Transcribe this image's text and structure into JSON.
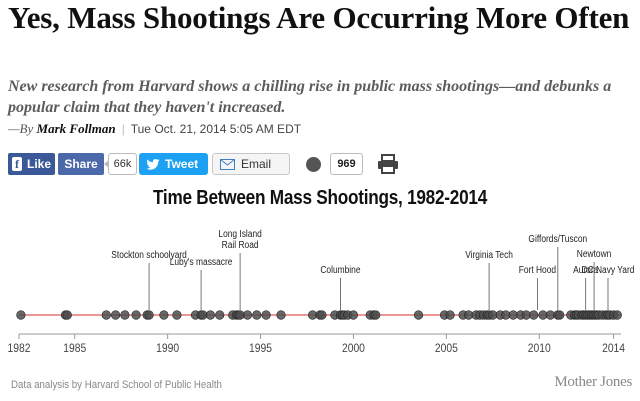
{
  "article": {
    "headline": "Yes, Mass Shootings Are Occurring More Often",
    "dek": "New research from Harvard shows a chilling rise in public mass shootings—and debunks a popular claim that they haven't increased.",
    "by_prefix": "—By",
    "author": "Mark Follman",
    "separator": "|",
    "date": "Tue Oct. 21, 2014 5:05 AM EDT"
  },
  "share_bar": {
    "facebook_like": "Like",
    "facebook_share": "Share",
    "share_count": "66k",
    "tweet": "Tweet",
    "email": "Email",
    "comment_count": "969",
    "icons": [
      "facebook-icon",
      "twitter-bird-icon",
      "envelope-icon",
      "comment-bubble-icon",
      "printer-icon"
    ],
    "colors": {
      "facebook": "#3b5998",
      "twitter": "#1da1f2"
    }
  },
  "chart_data": {
    "type": "scatter",
    "title": "Time Between Mass Shootings, 1982-2014",
    "xlabel": "",
    "ylabel": "",
    "xlim": [
      1982,
      2014.4
    ],
    "x_ticks": [
      "1982",
      "1985",
      "1990",
      "1995",
      "2000",
      "2005",
      "2010",
      "2014"
    ],
    "x": [
      1982.1,
      1984.5,
      1984.6,
      1986.7,
      1987.2,
      1987.7,
      1988.3,
      1988.9,
      1989.0,
      1989.8,
      1990.5,
      1991.5,
      1991.8,
      1991.9,
      1992.3,
      1992.8,
      1993.5,
      1993.7,
      1993.8,
      1993.9,
      1994.3,
      1994.8,
      1995.3,
      1996.1,
      1997.8,
      1998.2,
      1998.3,
      1999.0,
      1999.3,
      1999.4,
      1999.5,
      1999.7,
      2000.0,
      2000.9,
      2001.1,
      2001.2,
      2003.5,
      2004.9,
      2005.2,
      2005.9,
      2006.2,
      2006.6,
      2006.8,
      2007.0,
      2007.2,
      2007.3,
      2007.5,
      2007.9,
      2008.2,
      2008.6,
      2009.0,
      2009.3,
      2009.7,
      2010.2,
      2010.6,
      2011.0,
      2011.1,
      2011.7,
      2011.9,
      2012.0,
      2012.1,
      2012.3,
      2012.4,
      2012.5,
      2012.6,
      2012.7,
      2012.8,
      2012.9,
      2013.0,
      2013.1,
      2013.2,
      2013.4,
      2013.6,
      2013.7,
      2013.8,
      2014.0,
      2014.2
    ],
    "annotations": [
      {
        "label": "Stockton schoolyard",
        "x": 1989.0
      },
      {
        "label": "Luby's massacre",
        "x": 1991.8
      },
      {
        "label": "Long Island\nRail Road",
        "x": 1993.9
      },
      {
        "label": "Columbine",
        "x": 1999.3
      },
      {
        "label": "Virginia Tech",
        "x": 2007.3
      },
      {
        "label": "Fort Hood",
        "x": 2009.9
      },
      {
        "label": "Giffords/Tuscon",
        "x": 2011.0
      },
      {
        "label": "Aurora",
        "x": 2012.5
      },
      {
        "label": "Newtown",
        "x": 2012.95
      },
      {
        "label": "DC Navy Yard",
        "x": 2013.7
      }
    ],
    "colors": {
      "axis_line": "#e57373",
      "dots": "#4d4d4d"
    },
    "grid": false
  },
  "footer": {
    "credit": "Data analysis by Harvard School of Public Health",
    "brand": "Mother Jones"
  }
}
